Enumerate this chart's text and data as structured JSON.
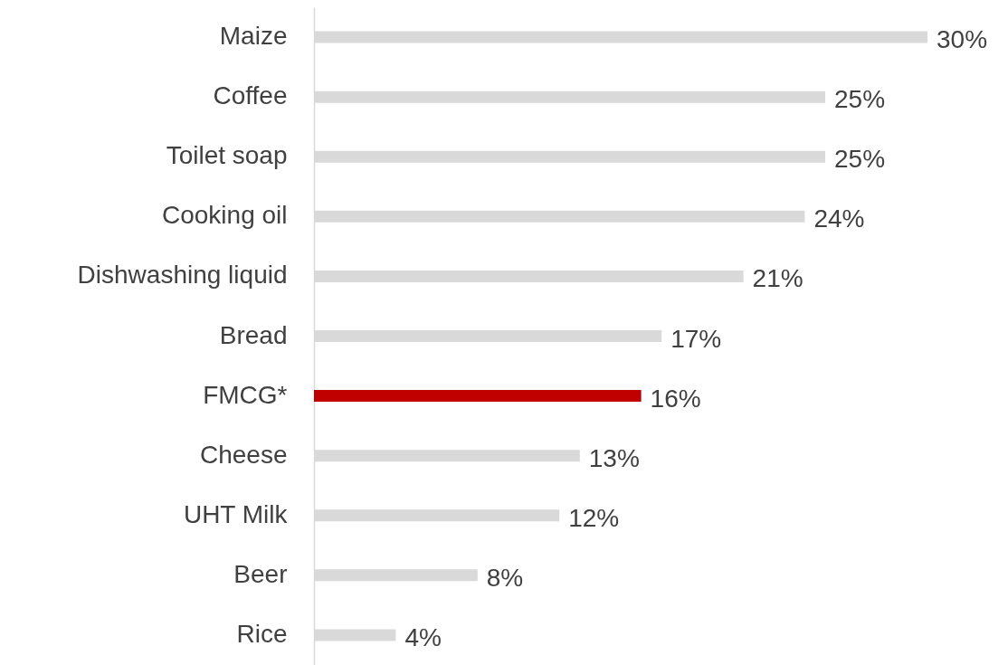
{
  "chart_data": {
    "type": "bar",
    "orientation": "horizontal",
    "categories": [
      "Maize",
      "Coffee",
      "Toilet soap",
      "Cooking oil",
      "Dishwashing liquid",
      "Bread",
      "FMCG*",
      "Cheese",
      "UHT Milk",
      "Beer",
      "Rice"
    ],
    "values": [
      30,
      25,
      25,
      24,
      21,
      17,
      16,
      13,
      12,
      8,
      4
    ],
    "value_labels": [
      "30%",
      "25%",
      "25%",
      "24%",
      "21%",
      "17%",
      "16%",
      "13%",
      "12%",
      "8%",
      "4%"
    ],
    "colors": [
      "#d9d9d9",
      "#d9d9d9",
      "#d9d9d9",
      "#d9d9d9",
      "#d9d9d9",
      "#d9d9d9",
      "#c00000",
      "#d9d9d9",
      "#d9d9d9",
      "#d9d9d9",
      "#d9d9d9"
    ]
  }
}
